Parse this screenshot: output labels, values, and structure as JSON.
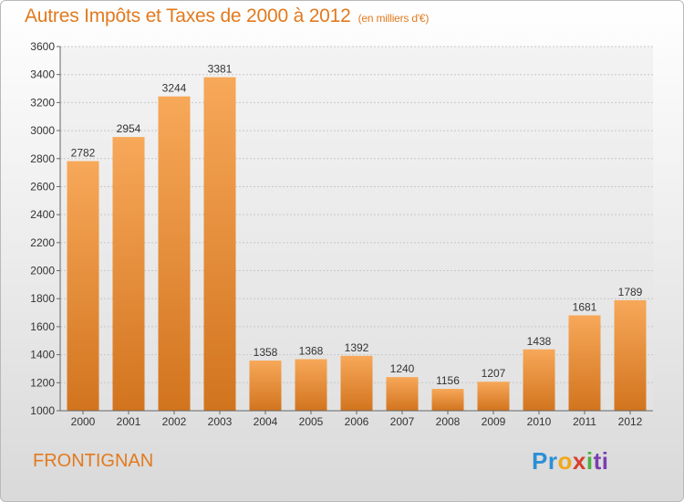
{
  "header": {
    "title": "Autres Impôts et Taxes de 2000 à 2012",
    "subtitle": "(en milliers d'€)"
  },
  "footer": {
    "place": "FRONTIGNAN",
    "logo": {
      "l1": "Pr",
      "l2": "o",
      "l3": "x",
      "l4": "i",
      "l5": "ti"
    }
  },
  "colors": {
    "bar_light": "#f7a859",
    "bar_dark": "#d2741e",
    "text": "#e27a1e"
  },
  "chart_data": {
    "type": "bar",
    "title": "Autres Impôts et Taxes de 2000 à 2012",
    "subtitle": "(en milliers d'€)",
    "categories": [
      "2000",
      "2001",
      "2002",
      "2003",
      "2004",
      "2005",
      "2006",
      "2007",
      "2008",
      "2009",
      "2010",
      "2011",
      "2012"
    ],
    "values": [
      2782,
      2954,
      3244,
      3381,
      1358,
      1368,
      1392,
      1240,
      1156,
      1207,
      1438,
      1681,
      1789
    ],
    "ylim": [
      1000,
      3600
    ],
    "yticks": [
      1000,
      1200,
      1400,
      1600,
      1800,
      2000,
      2200,
      2400,
      2600,
      2800,
      3000,
      3200,
      3400,
      3600
    ],
    "grid": true,
    "data_labels": true
  }
}
